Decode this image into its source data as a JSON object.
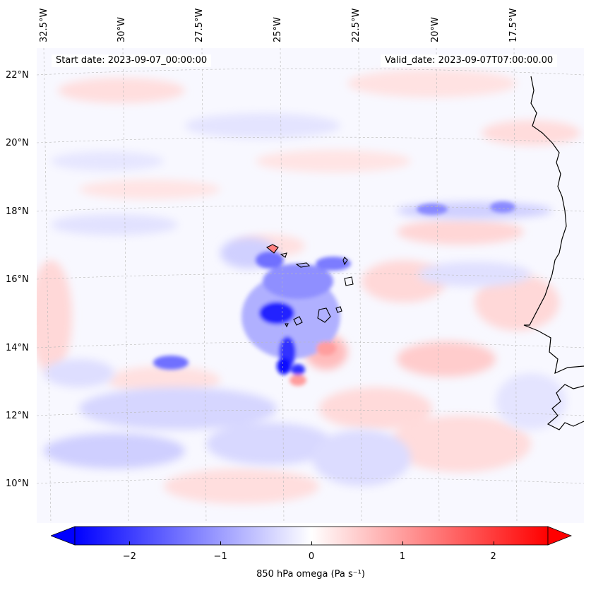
{
  "map": {
    "start_date": "Start date: 2023-09-07_00:00:00",
    "valid_date": "Valid_date: 2023-09-07T07:00:00.00",
    "lon_labels": [
      "32.5°W",
      "30°W",
      "27.5°W",
      "25°W",
      "22.5°W",
      "20°W",
      "17.5°W"
    ],
    "lat_labels": [
      "22°N",
      "20°N",
      "18°N",
      "16°N",
      "14°N",
      "12°N",
      "10°N"
    ],
    "variable": "850 hPa omega",
    "units": "Pa s⁻¹",
    "colormap": "bwr",
    "colors": {
      "negative": "#0000ff",
      "positive": "#ff0000",
      "neutral": "#ffffff",
      "coast": "#000000",
      "grid": "#b0b0b0"
    }
  },
  "colorbar": {
    "label": "850 hPa omega (Pa s⁻¹)",
    "min": -2.6,
    "max": 2.6,
    "ticks": [
      {
        "value": -2,
        "label": "−2"
      },
      {
        "value": -1,
        "label": "−1"
      },
      {
        "value": 0,
        "label": "0"
      },
      {
        "value": 1,
        "label": "1"
      },
      {
        "value": 2,
        "label": "2"
      }
    ],
    "extend": "both"
  }
}
